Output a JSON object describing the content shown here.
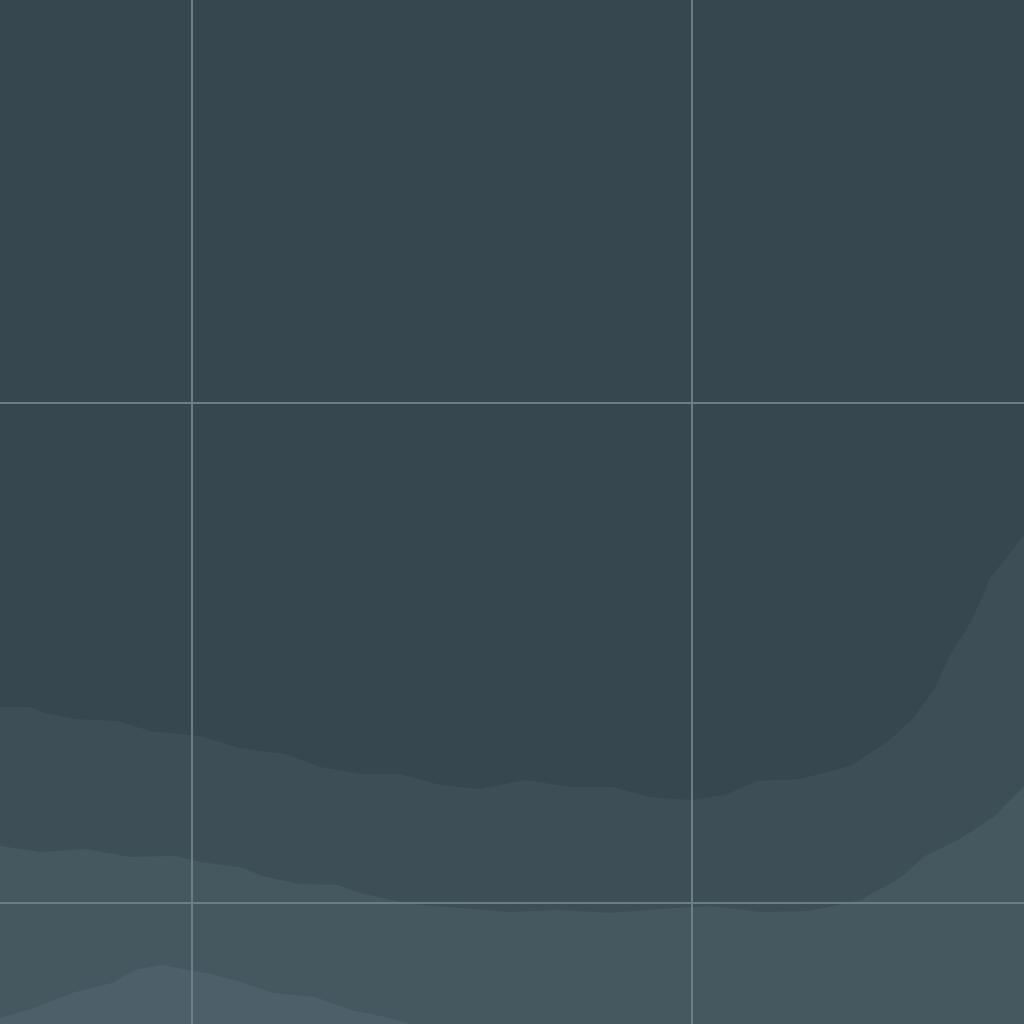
{
  "map": {
    "theme": "dark",
    "colors": {
      "deep_water": "#37474f",
      "depth_band_1": "#3d4e56",
      "depth_band_2": "#455860",
      "depth_band_3": "#4d6069",
      "graticule": "#6b7d85"
    },
    "depth_bands": [
      {
        "name": "deep-water-area"
      },
      {
        "name": "depth-band-1"
      },
      {
        "name": "depth-band-2"
      },
      {
        "name": "depth-band-3"
      }
    ],
    "graticule": {
      "visible": true,
      "vertical_line_count": 2,
      "horizontal_line_count": 2
    }
  }
}
